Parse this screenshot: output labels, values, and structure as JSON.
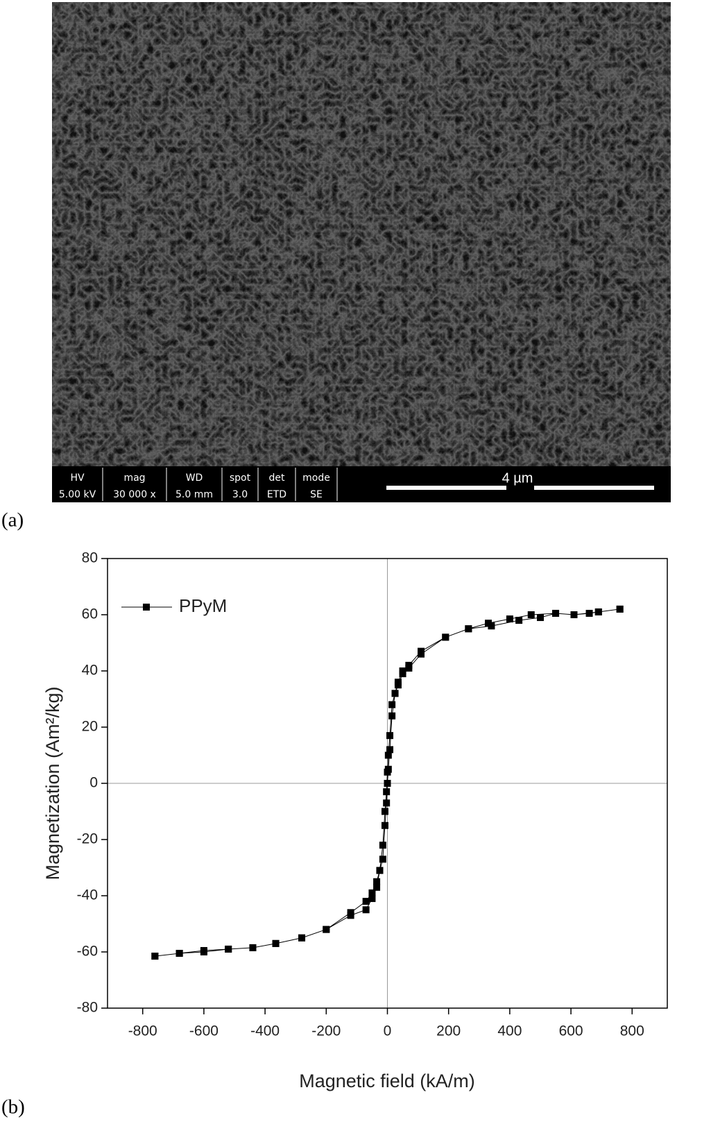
{
  "panels": {
    "a": "(a)",
    "b": "(b)"
  },
  "sem": {
    "info": [
      {
        "label": "HV",
        "value": "5.00 kV"
      },
      {
        "label": "mag",
        "value": "30 000 x"
      },
      {
        "label": "WD",
        "value": "5.0 mm"
      },
      {
        "label": "spot",
        "value": "3.0"
      },
      {
        "label": "det",
        "value": "ETD"
      },
      {
        "label": "mode",
        "value": "SE"
      }
    ],
    "scale_bar": "4 µm"
  },
  "chart_data": {
    "type": "line",
    "xlabel": "Magnetic field (kA/m)",
    "ylabel": "Magnetization (Am²/kg)",
    "xlim": [
      -915,
      915
    ],
    "ylim": [
      -80,
      80
    ],
    "xticks": [
      -800,
      -600,
      -400,
      -200,
      0,
      200,
      400,
      600,
      800
    ],
    "yticks": [
      -80,
      -60,
      -40,
      -20,
      0,
      20,
      40,
      60,
      80
    ],
    "zero_lines": true,
    "legend": "upper left",
    "x": [
      -760,
      -680,
      -600,
      -520,
      -440,
      -365,
      -280,
      -200,
      -120,
      -70,
      -50,
      -35,
      -25,
      -15,
      -8,
      -3,
      0,
      3,
      8,
      15,
      25,
      35,
      50,
      70,
      110,
      190,
      265,
      340,
      430,
      500,
      550,
      610,
      660,
      690,
      760,
      760,
      690,
      610,
      550,
      470,
      400,
      330,
      265,
      190,
      110,
      70,
      50,
      35,
      25,
      15,
      8,
      3,
      0,
      -3,
      -8,
      -15,
      -25,
      -35,
      -50,
      -70,
      -120,
      -200,
      -280,
      -365,
      -440,
      -520,
      -600,
      -680,
      -760
    ],
    "series": [
      {
        "name": "PPyM",
        "color": "#000000",
        "values": [
          -61.5,
          -60.5,
          -59.5,
          -59,
          -58.5,
          -57,
          -55,
          -52,
          -46,
          -42,
          -39,
          -35,
          -31,
          -27,
          -15,
          -7,
          0,
          5,
          12,
          24,
          32,
          36,
          40,
          41,
          46,
          52,
          55,
          56,
          58,
          59,
          60.5,
          60,
          60.5,
          61,
          62,
          62,
          61,
          60,
          60.5,
          60,
          58.5,
          57,
          55,
          52,
          47,
          42,
          39,
          35,
          32,
          28,
          17,
          10,
          4,
          -3,
          -10,
          -22,
          -31,
          -37,
          -41,
          -45,
          -47,
          -52,
          -55,
          -57,
          -58.5,
          -59,
          -60,
          -60.5,
          -61.5
        ]
      }
    ]
  }
}
